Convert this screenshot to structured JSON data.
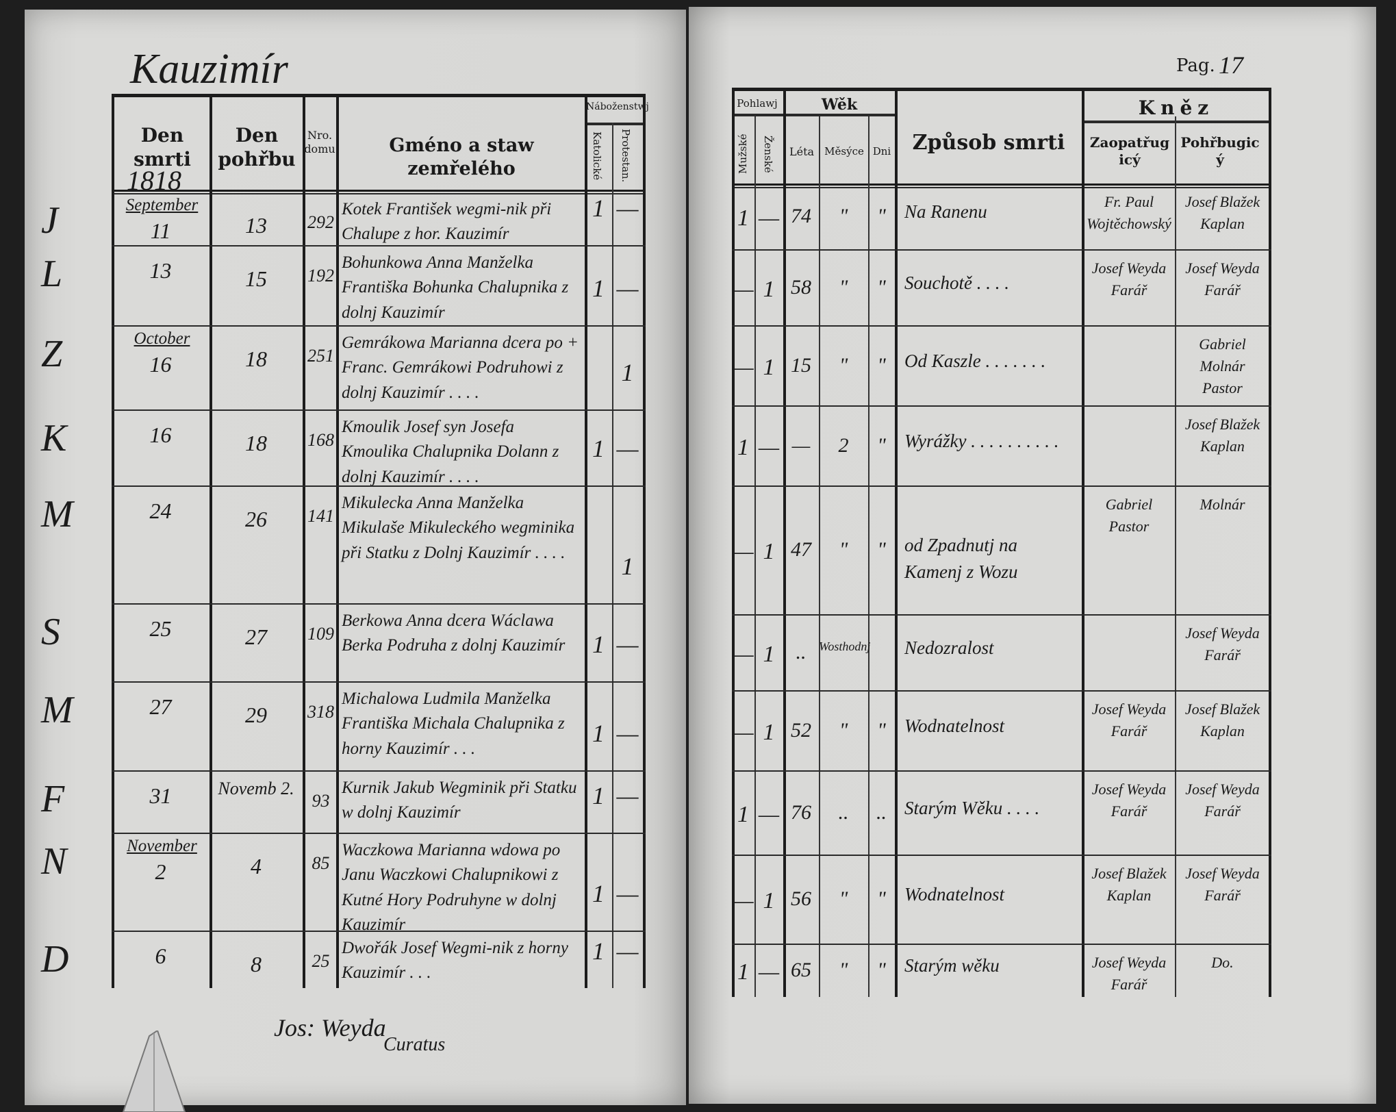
{
  "left_page": {
    "place_title": "Kauzimír",
    "year": "1818",
    "headers": {
      "den_smrti": "Den smrti",
      "den_pohrbu": "Den pohřbu",
      "cislo_domu": "Nro. domu",
      "jmeno": "Gméno a staw zemřelého",
      "nabozenstvi": "Náboženstwj",
      "katolicke": "Katolické",
      "protestantske": "Protestan."
    },
    "margin_marks": [
      "J",
      "L",
      "Z",
      "K",
      "M",
      "S",
      "M",
      "F",
      "N",
      "D"
    ],
    "signature": {
      "name": "Jos: Weyda",
      "title": "Curatus"
    }
  },
  "right_page": {
    "page_label": "Pag.",
    "page_number": "17",
    "headers": {
      "pohlawj": "Pohlawj",
      "muzske": "Mužské",
      "zenske": "Ženské",
      "wek": "Wěk",
      "leta": "Léta",
      "mesyce": "Měsýce",
      "dni": "Dni",
      "zpusob_smrti": "Způsob smrti",
      "knez": "Kněz",
      "zaopatrugicy": "Zaopatřugicý",
      "pohrbugicy": "Pohřbugicý"
    }
  },
  "records": [
    {
      "death_month": "September",
      "death_day": "11",
      "burial": "13",
      "house": "292",
      "name": "Kotek František wegmi-nik při Chalupe z hor. Kauzimír",
      "catholic": "1",
      "protestant": "—",
      "male": "1",
      "female": "—",
      "years": "74",
      "months": "\"",
      "days": "\"",
      "cause": "Na Ranenu",
      "provided_by": "Fr. Paul Wojtěchowský",
      "buried_by": "Josef Blažek Kaplan"
    },
    {
      "death_month": "",
      "death_day": "13",
      "burial": "15",
      "house": "192",
      "name": "Bohunkowa Anna Manželka Františka Bohunka Chalupnika z dolnj Kauzimír",
      "catholic": "1",
      "protestant": "—",
      "male": "—",
      "female": "1",
      "years": "58",
      "months": "\"",
      "days": "\"",
      "cause": "Souchotě . . . .",
      "provided_by": "Josef Weyda Farář",
      "buried_by": "Josef Weyda Farář"
    },
    {
      "death_month": "October",
      "death_day": "16",
      "burial": "18",
      "house": "251",
      "name": "Gemrákowa Marianna dcera po + Franc. Gemrákowi Podruhowi z dolnj Kauzimír . . . .",
      "catholic": "",
      "protestant": "1",
      "male": "—",
      "female": "1",
      "years": "15",
      "months": "\"",
      "days": "\"",
      "cause": "Od Kaszle . . . . . . .",
      "provided_by": "",
      "buried_by": "Gabriel Molnár Pastor"
    },
    {
      "death_month": "",
      "death_day": "16",
      "burial": "18",
      "house": "168",
      "name": "Kmoulik Josef syn Josefa Kmoulika Chalupnika Dolann z dolnj Kauzimír . . . .",
      "catholic": "1",
      "protestant": "—",
      "male": "1",
      "female": "—",
      "years": "—",
      "months": "2",
      "days": "\"",
      "cause": "Wyrážky . . . . . . . . . .",
      "provided_by": "",
      "buried_by": "Josef Blažek Kaplan"
    },
    {
      "death_month": "",
      "death_day": "24",
      "burial": "26",
      "house": "141",
      "name": "Mikulecka Anna Manželka Mikulaše Mikuleckého wegminika při Statku z Dolnj Kauzimír . . . .",
      "catholic": "",
      "protestant": "1",
      "male": "—",
      "female": "1",
      "years": "47",
      "months": "\"",
      "days": "\"",
      "cause": "od Zpadnutj na Kamenj z Wozu",
      "provided_by": "Gabriel Pastor",
      "buried_by": "Molnár"
    },
    {
      "death_month": "",
      "death_day": "25",
      "burial": "27",
      "house": "109",
      "name": "Berkowa Anna dcera Wáclawa Berka Podruha z dolnj Kauzimír",
      "catholic": "1",
      "protestant": "—",
      "male": "—",
      "female": "1",
      "years": "..",
      "months": "Wosthodnj",
      "days": "",
      "cause": "Nedozralost",
      "provided_by": "",
      "buried_by": "Josef Weyda Farář"
    },
    {
      "death_month": "",
      "death_day": "27",
      "burial": "29",
      "house": "318",
      "name": "Michalowa Ludmila Manželka Františka Michala Chalupnika z horny Kauzimír . . .",
      "catholic": "1",
      "protestant": "—",
      "male": "—",
      "female": "1",
      "years": "52",
      "months": "\"",
      "days": "\"",
      "cause": "Wodnatelnost",
      "provided_by": "Josef Weyda Farář",
      "buried_by": "Josef Blažek Kaplan"
    },
    {
      "death_month": "",
      "death_day": "31",
      "burial": "Novemb 2.",
      "house": "93",
      "name": "Kurnik Jakub Wegminik při Statku w dolnj Kauzimír",
      "catholic": "1",
      "protestant": "—",
      "male": "1",
      "female": "—",
      "years": "76",
      "months": "..",
      "days": "..",
      "cause": "Starým Wěku . . . .",
      "provided_by": "Josef Weyda Farář",
      "buried_by": "Josef Weyda Farář"
    },
    {
      "death_month": "November",
      "death_day": "2",
      "burial": "4",
      "house": "85",
      "name": "Waczkowa Marianna wdowa po Janu Waczkowi Chalupnikowi z Kutné Hory Podruhyne w dolnj Kauzimír",
      "catholic": "1",
      "protestant": "—",
      "male": "—",
      "female": "1",
      "years": "56",
      "months": "\"",
      "days": "\"",
      "cause": "Wodnatelnost",
      "provided_by": "Josef Blažek Kaplan",
      "buried_by": "Josef Weyda Farář"
    },
    {
      "death_month": "",
      "death_day": "6",
      "burial": "8",
      "house": "25",
      "name": "Dwořák Josef Wegmi-nik z horny Kauzimír . . .",
      "catholic": "1",
      "protestant": "—",
      "male": "1",
      "female": "—",
      "years": "65",
      "months": "\"",
      "days": "\"",
      "cause": "Starým wěku",
      "provided_by": "Josef Weyda Farář",
      "buried_by": "Do."
    }
  ]
}
